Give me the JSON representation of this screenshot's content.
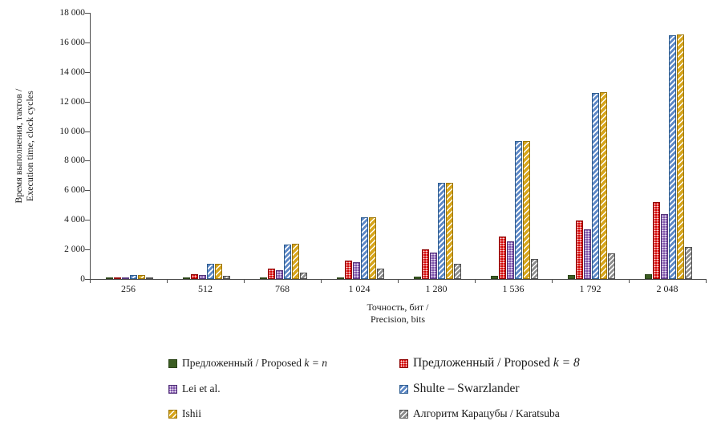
{
  "chart_data": {
    "type": "bar",
    "title": "",
    "ylabel_line1": "Время выполнения, тактов /",
    "ylabel_line2": "Execution time, clock cycles",
    "xlabel_line1": "Точность, бит /",
    "xlabel_line2": "Precision, bits",
    "ylim": [
      0,
      18000
    ],
    "ytick_step": 2000,
    "ytick_labels": [
      "0",
      "2 000",
      "4 000",
      "6 000",
      "8 000",
      "10 000",
      "12 000",
      "14 000",
      "16 000",
      "18 000"
    ],
    "categories": [
      "256",
      "512",
      "768",
      "1 024",
      "1 280",
      "1 536",
      "1 792",
      "2 048"
    ],
    "grid": false,
    "legend_position": "bottom",
    "series": [
      {
        "name": "Предложенный / Proposed k = n",
        "label_text": "Предложенный / Proposed ",
        "label_math": "k = n",
        "color": "#3b5d22",
        "pattern": "solid",
        "values": [
          15,
          30,
          60,
          110,
          160,
          210,
          260,
          310
        ]
      },
      {
        "name": "Предложенный / Proposed k = 8",
        "label_text": "Предложенный / Proposed ",
        "label_math": "k = 8",
        "color": "#d40000",
        "pattern": "dots",
        "values": [
          60,
          330,
          700,
          1250,
          2000,
          2900,
          3950,
          5180
        ]
      },
      {
        "name": "Lei et al.",
        "label_text": "Lei et al.",
        "label_math": "",
        "color": "#7d52a8",
        "pattern": "dots",
        "values": [
          50,
          280,
          620,
          1120,
          1780,
          2560,
          3380,
          4400
        ]
      },
      {
        "name": "Shulte – Swarzlander",
        "label_text": "Shulte – Swarzlander",
        "label_math": "",
        "color": "#5c87c5",
        "pattern": "diagonal-hatch",
        "values": [
          260,
          1020,
          2330,
          4150,
          6480,
          9300,
          12600,
          16480
        ]
      },
      {
        "name": "Ishii",
        "label_text": "Ishii",
        "label_math": "",
        "color": "#d6a51c",
        "pattern": "diagonal-hatch",
        "values": [
          280,
          1050,
          2360,
          4200,
          6500,
          9320,
          12620,
          16520
        ]
      },
      {
        "name": "Алгоритм Карацубы / Karatsuba",
        "label_text": "Алгоритм Карацубы / Karatsuba",
        "label_math": "",
        "color": "#8c8c8c",
        "pattern": "diagonal-hatch",
        "values": [
          60,
          230,
          430,
          730,
          1020,
          1380,
          1760,
          2180
        ]
      }
    ]
  }
}
